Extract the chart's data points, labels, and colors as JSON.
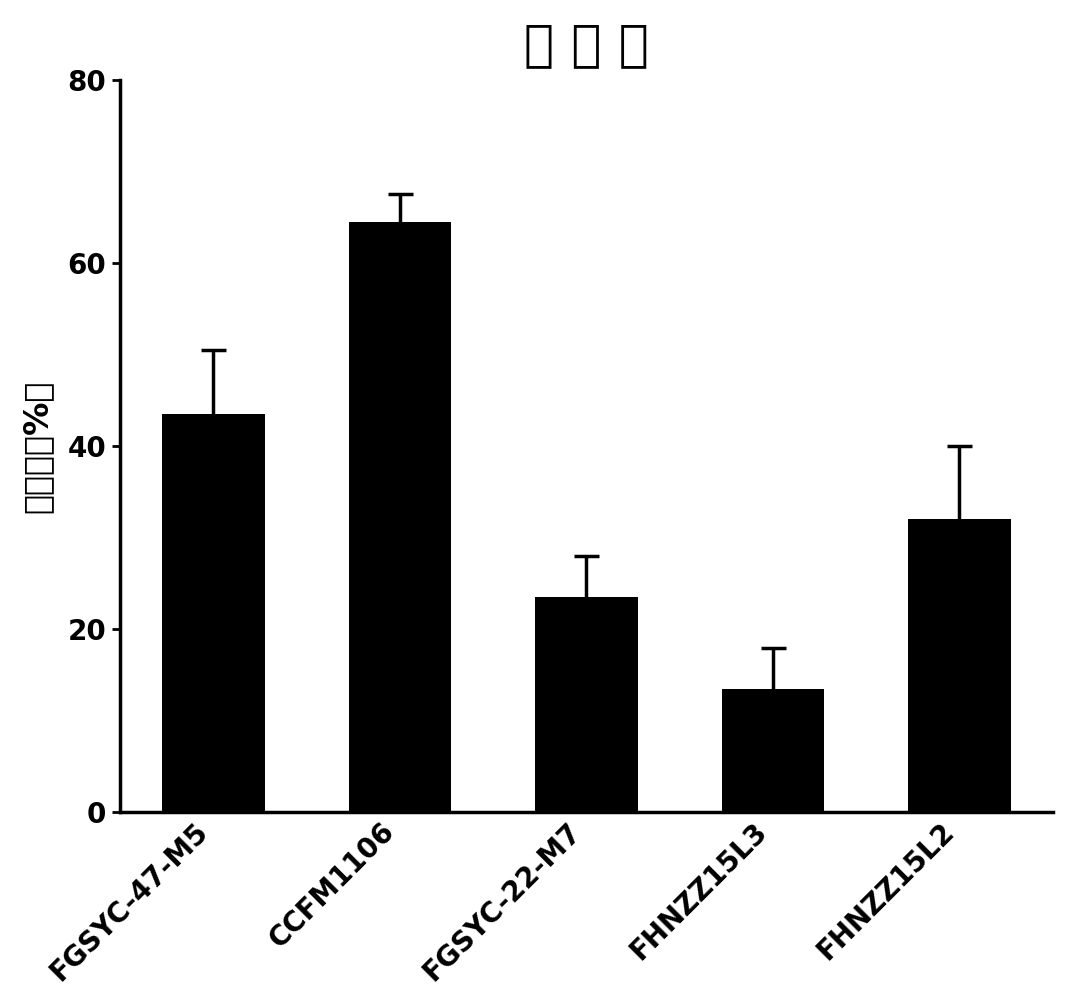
{
  "title": "吸 附 率",
  "ylabel": "吸附率（%）",
  "categories": [
    "FGSYC-47-M5",
    "CCFM1106",
    "FGSYC-22-M7",
    "FHNZZ15L3",
    "FHNZZ15L2"
  ],
  "values": [
    43.5,
    64.5,
    23.5,
    13.5,
    32.0
  ],
  "errors": [
    7.0,
    3.0,
    4.5,
    4.5,
    8.0
  ],
  "bar_color": "#000000",
  "background_color": "#ffffff",
  "ylim": [
    0,
    80
  ],
  "yticks": [
    0,
    20,
    40,
    60,
    80
  ],
  "title_fontsize": 36,
  "ylabel_fontsize": 24,
  "tick_fontsize": 20,
  "xlabel_fontsize": 20,
  "bar_width": 0.55
}
